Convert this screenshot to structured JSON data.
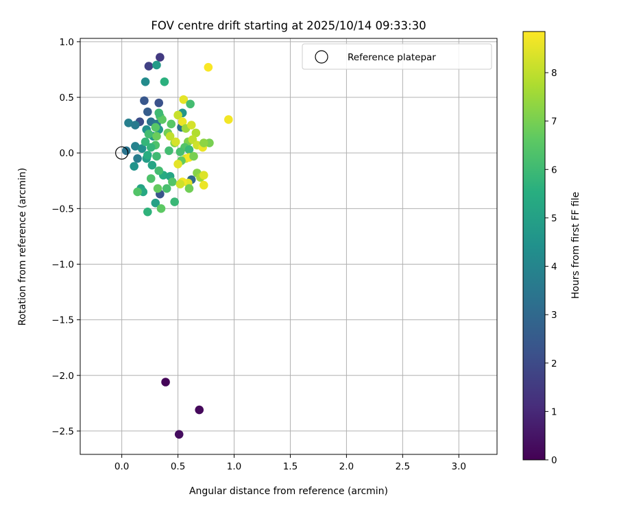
{
  "chart_data": {
    "type": "scatter",
    "title": "FOV centre drift starting at 2025/10/14 09:33:30",
    "xlabel": "Angular distance from reference (arcmin)",
    "ylabel": "Rotation from reference (arcmin)",
    "xlim": [
      -0.37,
      3.34
    ],
    "ylim": [
      -2.71,
      1.03
    ],
    "xticks": [
      0.0,
      0.5,
      1.0,
      1.5,
      2.0,
      2.5,
      3.0
    ],
    "yticks": [
      1.0,
      0.5,
      0.0,
      -0.5,
      -1.0,
      -1.5,
      -2.0,
      -2.5
    ],
    "xtick_labels": [
      "0.0",
      "0.5",
      "1.0",
      "1.5",
      "2.0",
      "2.5",
      "3.0"
    ],
    "ytick_labels": [
      "1.0",
      "0.5",
      "0.0",
      "−0.5",
      "−1.0",
      "−1.5",
      "−2.0",
      "−2.5"
    ],
    "grid": true,
    "legend": {
      "position": "top-right",
      "entries": [
        "Reference platepar"
      ]
    },
    "reference_point": {
      "x": 0.0,
      "y": 0.0
    },
    "colorbar": {
      "label": "Hours from first FF file",
      "colormap": "viridis",
      "range": [
        0,
        8.85
      ],
      "ticks": [
        0,
        1,
        2,
        3,
        4,
        5,
        6,
        7,
        8
      ],
      "tick_labels": [
        "0",
        "1",
        "2",
        "3",
        "4",
        "5",
        "6",
        "7",
        "8"
      ]
    },
    "points": [
      {
        "x": 0.39,
        "y": -2.06,
        "t": 0.1
      },
      {
        "x": 0.69,
        "y": -2.31,
        "t": 0.2
      },
      {
        "x": 0.51,
        "y": -2.53,
        "t": 0.3
      },
      {
        "x": 0.34,
        "y": 0.86,
        "t": 1.5
      },
      {
        "x": 0.24,
        "y": 0.78,
        "t": 1.7
      },
      {
        "x": 0.33,
        "y": 0.45,
        "t": 2.2
      },
      {
        "x": 0.2,
        "y": 0.47,
        "t": 2.4
      },
      {
        "x": 0.23,
        "y": 0.37,
        "t": 2.6
      },
      {
        "x": 0.16,
        "y": 0.28,
        "t": 2.1
      },
      {
        "x": 0.34,
        "y": -0.37,
        "t": 2.3
      },
      {
        "x": 0.21,
        "y": 0.64,
        "t": 4.2
      },
      {
        "x": 0.31,
        "y": 0.79,
        "t": 4.8
      },
      {
        "x": 0.38,
        "y": 0.64,
        "t": 5.6
      },
      {
        "x": 0.06,
        "y": 0.27,
        "t": 3.8
      },
      {
        "x": 0.04,
        "y": 0.02,
        "t": 3.4
      },
      {
        "x": 0.12,
        "y": 0.25,
        "t": 3.6
      },
      {
        "x": 0.14,
        "y": -0.05,
        "t": 3.7
      },
      {
        "x": 0.11,
        "y": -0.12,
        "t": 4.5
      },
      {
        "x": 0.12,
        "y": 0.06,
        "t": 3.9
      },
      {
        "x": 0.18,
        "y": 0.04,
        "t": 4.3
      },
      {
        "x": 0.22,
        "y": 0.21,
        "t": 4.4
      },
      {
        "x": 0.26,
        "y": 0.28,
        "t": 3.3
      },
      {
        "x": 0.28,
        "y": 0.15,
        "t": 4.6
      },
      {
        "x": 0.31,
        "y": 0.26,
        "t": 3.5
      },
      {
        "x": 0.33,
        "y": 0.21,
        "t": 4.7
      },
      {
        "x": 0.22,
        "y": -0.05,
        "t": 4.9
      },
      {
        "x": 0.27,
        "y": -0.11,
        "t": 5.2
      },
      {
        "x": 0.23,
        "y": -0.02,
        "t": 5.5
      },
      {
        "x": 0.21,
        "y": 0.1,
        "t": 5.8
      },
      {
        "x": 0.24,
        "y": 0.17,
        "t": 6.1
      },
      {
        "x": 0.3,
        "y": 0.07,
        "t": 6.3
      },
      {
        "x": 0.3,
        "y": 0.23,
        "t": 6.5
      },
      {
        "x": 0.34,
        "y": 0.33,
        "t": 6.2
      },
      {
        "x": 0.31,
        "y": -0.03,
        "t": 6.0
      },
      {
        "x": 0.37,
        "y": -0.2,
        "t": 5.4
      },
      {
        "x": 0.17,
        "y": -0.32,
        "t": 5.1
      },
      {
        "x": 0.19,
        "y": -0.35,
        "t": 5.3
      },
      {
        "x": 0.14,
        "y": -0.35,
        "t": 6.4
      },
      {
        "x": 0.23,
        "y": -0.53,
        "t": 5.7
      },
      {
        "x": 0.3,
        "y": -0.45,
        "t": 5.0
      },
      {
        "x": 0.35,
        "y": -0.5,
        "t": 6.6
      },
      {
        "x": 0.32,
        "y": -0.32,
        "t": 6.7
      },
      {
        "x": 0.4,
        "y": -0.32,
        "t": 6.2
      },
      {
        "x": 0.47,
        "y": -0.44,
        "t": 5.9
      },
      {
        "x": 0.43,
        "y": -0.21,
        "t": 5.2
      },
      {
        "x": 0.45,
        "y": -0.26,
        "t": 6.4
      },
      {
        "x": 0.33,
        "y": -0.16,
        "t": 6.1
      },
      {
        "x": 0.26,
        "y": -0.23,
        "t": 6.3
      },
      {
        "x": 0.26,
        "y": 0.05,
        "t": 5.8
      },
      {
        "x": 0.31,
        "y": 0.15,
        "t": 6.8
      },
      {
        "x": 0.36,
        "y": 0.3,
        "t": 6.6
      },
      {
        "x": 0.33,
        "y": 0.36,
        "t": 6.0
      },
      {
        "x": 0.41,
        "y": 0.18,
        "t": 6.9
      },
      {
        "x": 0.44,
        "y": 0.26,
        "t": 6.5
      },
      {
        "x": 0.42,
        "y": 0.02,
        "t": 6.1
      },
      {
        "x": 0.47,
        "y": 0.09,
        "t": 7.2
      },
      {
        "x": 0.53,
        "y": 0.23,
        "t": 3.3
      },
      {
        "x": 0.54,
        "y": 0.36,
        "t": 4.6
      },
      {
        "x": 0.55,
        "y": 0.48,
        "t": 8.5
      },
      {
        "x": 0.61,
        "y": 0.44,
        "t": 6.1
      },
      {
        "x": 0.5,
        "y": 0.34,
        "t": 8.1
      },
      {
        "x": 0.54,
        "y": 0.28,
        "t": 8.6
      },
      {
        "x": 0.57,
        "y": 0.22,
        "t": 7.5
      },
      {
        "x": 0.62,
        "y": 0.25,
        "t": 8.3
      },
      {
        "x": 0.66,
        "y": 0.18,
        "t": 7.8
      },
      {
        "x": 0.59,
        "y": 0.1,
        "t": 7.1
      },
      {
        "x": 0.63,
        "y": 0.12,
        "t": 8.0
      },
      {
        "x": 0.56,
        "y": 0.05,
        "t": 6.4
      },
      {
        "x": 0.6,
        "y": 0.03,
        "t": 5.9
      },
      {
        "x": 0.52,
        "y": 0.01,
        "t": 6.2
      },
      {
        "x": 0.57,
        "y": -0.05,
        "t": 8.4
      },
      {
        "x": 0.6,
        "y": -0.04,
        "t": 8.7
      },
      {
        "x": 0.64,
        "y": -0.03,
        "t": 7.0
      },
      {
        "x": 0.53,
        "y": -0.07,
        "t": 6.7
      },
      {
        "x": 0.5,
        "y": -0.1,
        "t": 8.5
      },
      {
        "x": 0.67,
        "y": 0.07,
        "t": 8.2
      },
      {
        "x": 0.72,
        "y": 0.05,
        "t": 8.6
      },
      {
        "x": 0.78,
        "y": 0.09,
        "t": 7.0
      },
      {
        "x": 0.73,
        "y": 0.09,
        "t": 7.3
      },
      {
        "x": 0.95,
        "y": 0.3,
        "t": 8.7
      },
      {
        "x": 0.77,
        "y": 0.77,
        "t": 8.8
      },
      {
        "x": 0.67,
        "y": -0.18,
        "t": 7.2
      },
      {
        "x": 0.7,
        "y": -0.22,
        "t": 7.6
      },
      {
        "x": 0.73,
        "y": -0.2,
        "t": 8.4
      },
      {
        "x": 0.73,
        "y": -0.29,
        "t": 8.6
      },
      {
        "x": 0.62,
        "y": -0.24,
        "t": 3.0
      },
      {
        "x": 0.59,
        "y": -0.27,
        "t": 8.5
      },
      {
        "x": 0.54,
        "y": -0.26,
        "t": 8.7
      },
      {
        "x": 0.52,
        "y": -0.28,
        "t": 8.2
      },
      {
        "x": 0.6,
        "y": -0.32,
        "t": 6.9
      },
      {
        "x": 0.48,
        "y": 0.1,
        "t": 8.3
      },
      {
        "x": 0.43,
        "y": 0.15,
        "t": 8.0
      }
    ]
  }
}
